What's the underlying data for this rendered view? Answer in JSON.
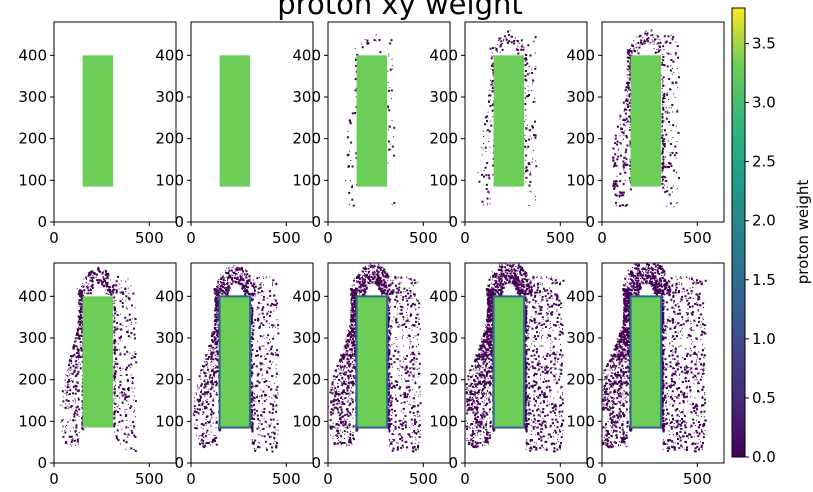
{
  "chart_data": {
    "type": "heatmap",
    "title": "proton xy weight",
    "x_ticks": [
      "0",
      "500"
    ],
    "y_ticks": [
      "0",
      "100",
      "200",
      "300",
      "400"
    ],
    "xlim": [
      0,
      640
    ],
    "ylim": [
      0,
      480
    ],
    "panel_grid": {
      "rows": 2,
      "cols": 5
    },
    "colorbar": {
      "label": "proton weight",
      "min": 0.0,
      "max": 3.8,
      "ticks": [
        "0.0",
        "0.5",
        "1.0",
        "1.5",
        "2.0",
        "2.5",
        "3.0",
        "3.5"
      ],
      "colormap": "viridis"
    },
    "panels": [
      {
        "index": 1,
        "rect_x": [
          150,
          310
        ],
        "rect_y": [
          85,
          400
        ],
        "rect_value": 3.1,
        "scatter_level": 0
      },
      {
        "index": 2,
        "rect_x": [
          150,
          310
        ],
        "rect_y": [
          85,
          400
        ],
        "rect_value": 3.1,
        "scatter_level": 0
      },
      {
        "index": 3,
        "rect_x": [
          150,
          310
        ],
        "rect_y": [
          85,
          400
        ],
        "rect_value": 3.1,
        "scatter_level": 1
      },
      {
        "index": 4,
        "rect_x": [
          150,
          310
        ],
        "rect_y": [
          85,
          400
        ],
        "rect_value": 3.1,
        "scatter_level": 2
      },
      {
        "index": 5,
        "rect_x": [
          150,
          310
        ],
        "rect_y": [
          85,
          400
        ],
        "rect_value": 3.1,
        "scatter_level": 3
      },
      {
        "index": 6,
        "rect_x": [
          150,
          310
        ],
        "rect_y": [
          85,
          400
        ],
        "rect_value": 3.1,
        "scatter_level": 4
      },
      {
        "index": 7,
        "rect_x": [
          150,
          310
        ],
        "rect_y": [
          85,
          400
        ],
        "rect_value": 3.1,
        "scatter_level": 5
      },
      {
        "index": 8,
        "rect_x": [
          150,
          310
        ],
        "rect_y": [
          85,
          400
        ],
        "rect_value": 3.1,
        "scatter_level": 6
      },
      {
        "index": 9,
        "rect_x": [
          150,
          310
        ],
        "rect_y": [
          85,
          400
        ],
        "rect_value": 3.1,
        "scatter_level": 7
      },
      {
        "index": 10,
        "rect_x": [
          150,
          310
        ],
        "rect_y": [
          85,
          400
        ],
        "rect_value": 3.1,
        "scatter_level": 8
      }
    ]
  },
  "colors": {
    "rect_fill": "#6ccd59",
    "scatter": "#440154",
    "rect_edge": "#31688e"
  }
}
